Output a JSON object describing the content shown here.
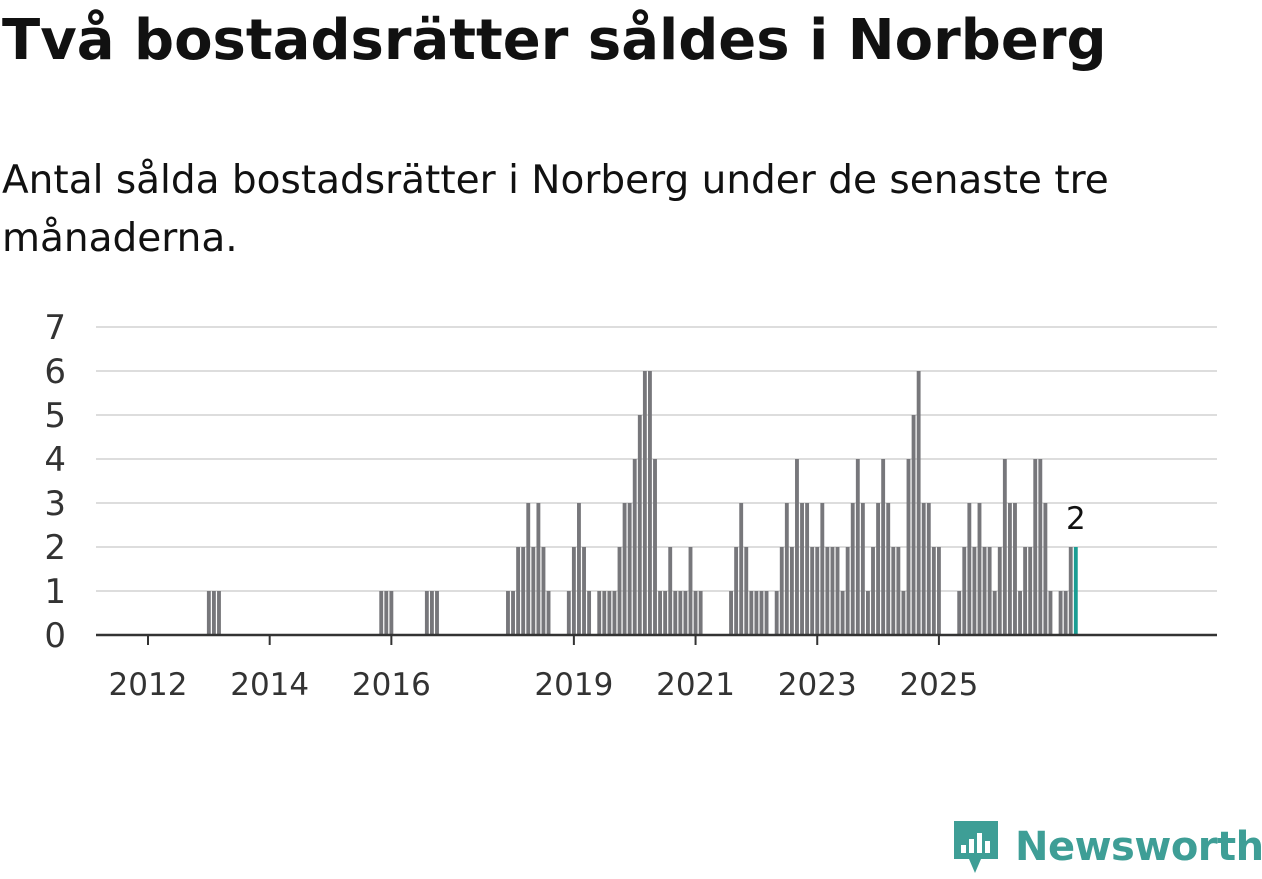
{
  "title": "Två bostadsrätter såldes i Norberg",
  "subtitle": "Antal sålda bostadsrätter i Norberg under de senaste tre månaderna.",
  "brand": {
    "name": "Newsworthy",
    "color": "#3e9e96",
    "icon": "newsworthy-logo-icon"
  },
  "colors": {
    "bar": "#77777b",
    "highlight": "#1a9d93",
    "grid": "#dddddd",
    "axis": "#333333"
  },
  "chart_data": {
    "type": "bar",
    "title": "Två bostadsrätter såldes i Norberg",
    "subtitle": "Antal sålda bostadsrätter i Norberg under de senaste tre månaderna.",
    "x_unit": "month",
    "x_start": "2011-08",
    "values": [
      0,
      0,
      0,
      0,
      0,
      0,
      0,
      0,
      0,
      0,
      0,
      0,
      0,
      0,
      0,
      0,
      0,
      1,
      1,
      1,
      0,
      0,
      0,
      0,
      0,
      0,
      0,
      0,
      0,
      0,
      0,
      0,
      0,
      0,
      0,
      0,
      0,
      0,
      0,
      0,
      0,
      0,
      0,
      0,
      0,
      0,
      0,
      0,
      0,
      0,
      0,
      1,
      1,
      1,
      0,
      0,
      0,
      0,
      0,
      0,
      1,
      1,
      1,
      0,
      0,
      0,
      0,
      0,
      0,
      0,
      0,
      0,
      0,
      0,
      0,
      0,
      1,
      1,
      2,
      2,
      3,
      2,
      3,
      2,
      1,
      0,
      0,
      0,
      1,
      2,
      3,
      2,
      1,
      0,
      1,
      1,
      1,
      1,
      2,
      3,
      3,
      4,
      5,
      6,
      6,
      4,
      1,
      1,
      2,
      1,
      1,
      1,
      2,
      1,
      1,
      0,
      0,
      0,
      0,
      0,
      1,
      2,
      3,
      2,
      1,
      1,
      1,
      1,
      0,
      1,
      2,
      3,
      2,
      4,
      3,
      3,
      2,
      2,
      3,
      2,
      2,
      2,
      1,
      2,
      3,
      4,
      3,
      1,
      2,
      3,
      4,
      3,
      2,
      2,
      1,
      4,
      5,
      6,
      3,
      3,
      2,
      2,
      0,
      0,
      0,
      1,
      2,
      3,
      2,
      3,
      2,
      2,
      1,
      2,
      4,
      3,
      3,
      1,
      2,
      2,
      4,
      4,
      3,
      1,
      0,
      1,
      1,
      2,
      2
    ],
    "highlight_last": true,
    "data_label": "2",
    "x_tick_labels": [
      "2012",
      "2014",
      "2016",
      "2019",
      "2021",
      "2023",
      "2025"
    ],
    "y_tick_labels": [
      "0",
      "1",
      "2",
      "3",
      "4",
      "5",
      "6",
      "7"
    ],
    "ylim": [
      0,
      7
    ],
    "grid": true,
    "legend": "none"
  }
}
